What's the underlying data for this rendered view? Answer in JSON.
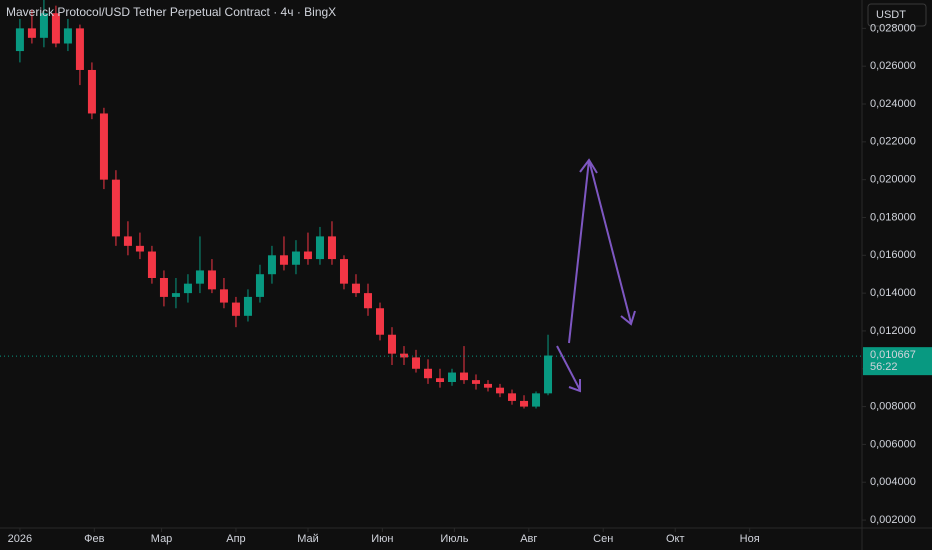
{
  "chart_data": {
    "type": "candlestick",
    "title": "Maverick Protocol/USD Tether Perpetual Contract · 4ч · BingX",
    "currency": "USDT",
    "up_color": "#089981",
    "down_color": "#f23645",
    "x": [
      0,
      5,
      10,
      15,
      20,
      25,
      30,
      35,
      40,
      45,
      50,
      55,
      60,
      65,
      70,
      75,
      80,
      85,
      90,
      95,
      100,
      105,
      110,
      115,
      120,
      125,
      130,
      135,
      140,
      145,
      150,
      155,
      160,
      165,
      170,
      175,
      180,
      185,
      190,
      195,
      200,
      205,
      210,
      215,
      220
    ],
    "open": [
      0.0268,
      0.028,
      0.0275,
      0.0288,
      0.0272,
      0.028,
      0.0258,
      0.0235,
      0.02,
      0.017,
      0.0165,
      0.0162,
      0.0148,
      0.0138,
      0.014,
      0.0145,
      0.0152,
      0.0142,
      0.0135,
      0.0128,
      0.0138,
      0.015,
      0.016,
      0.0155,
      0.0162,
      0.0158,
      0.017,
      0.0158,
      0.0145,
      0.014,
      0.0132,
      0.0118,
      0.0108,
      0.0106,
      0.01,
      0.0095,
      0.0093,
      0.0098,
      0.0094,
      0.0092,
      0.009,
      0.0087,
      0.0083,
      0.008,
      0.0087
    ],
    "high": [
      0.0285,
      0.029,
      0.0295,
      0.0292,
      0.0285,
      0.0282,
      0.0262,
      0.0238,
      0.0205,
      0.0178,
      0.0172,
      0.0165,
      0.0152,
      0.0148,
      0.015,
      0.017,
      0.0158,
      0.0148,
      0.0138,
      0.0142,
      0.0155,
      0.0165,
      0.017,
      0.0168,
      0.0172,
      0.0175,
      0.0178,
      0.016,
      0.015,
      0.0145,
      0.0135,
      0.0122,
      0.0112,
      0.011,
      0.0105,
      0.01,
      0.01,
      0.0112,
      0.0097,
      0.0094,
      0.0092,
      0.0089,
      0.0086,
      0.0088,
      0.0118
    ],
    "low": [
      0.0262,
      0.0272,
      0.027,
      0.027,
      0.0268,
      0.025,
      0.0232,
      0.0195,
      0.0165,
      0.016,
      0.0158,
      0.0145,
      0.0133,
      0.0132,
      0.0135,
      0.014,
      0.014,
      0.0132,
      0.0122,
      0.0125,
      0.0135,
      0.0145,
      0.0152,
      0.015,
      0.0155,
      0.0155,
      0.0155,
      0.0142,
      0.0138,
      0.0128,
      0.0115,
      0.0102,
      0.0102,
      0.0098,
      0.0092,
      0.009,
      0.0091,
      0.0092,
      0.0089,
      0.0088,
      0.0085,
      0.0081,
      0.0079,
      0.0079,
      0.0086
    ],
    "close": [
      0.028,
      0.0275,
      0.0288,
      0.0272,
      0.028,
      0.0258,
      0.0235,
      0.02,
      0.017,
      0.0165,
      0.0162,
      0.0148,
      0.0138,
      0.014,
      0.0145,
      0.0152,
      0.0142,
      0.0135,
      0.0128,
      0.0138,
      0.015,
      0.016,
      0.0155,
      0.0162,
      0.0158,
      0.017,
      0.0158,
      0.0145,
      0.014,
      0.0132,
      0.0118,
      0.0108,
      0.0106,
      0.01,
      0.0095,
      0.0093,
      0.0098,
      0.0094,
      0.0092,
      0.009,
      0.0087,
      0.0083,
      0.008,
      0.0087,
      0.0107
    ],
    "xlim": [
      -8.3,
      350.8
    ],
    "xticks": [
      {
        "value": 0,
        "label": "2026"
      },
      {
        "value": 31,
        "label": "Фев"
      },
      {
        "value": 59,
        "label": "Мар"
      },
      {
        "value": 90,
        "label": "Апр"
      },
      {
        "value": 120,
        "label": "Май"
      },
      {
        "value": 151,
        "label": "Июн"
      },
      {
        "value": 181,
        "label": "Июль"
      },
      {
        "value": 212,
        "label": "Авг"
      },
      {
        "value": 243,
        "label": "Сен"
      },
      {
        "value": 273,
        "label": "Окт"
      },
      {
        "value": 304,
        "label": "Ноя"
      }
    ],
    "ylim": [
      0.00158,
      0.0295
    ],
    "yticks": [
      {
        "value": 0.002,
        "label": "0,002000"
      },
      {
        "value": 0.004,
        "label": "0,004000"
      },
      {
        "value": 0.006,
        "label": "0,006000"
      },
      {
        "value": 0.008,
        "label": "0,008000"
      },
      {
        "value": 0.01,
        "label": "0,010000"
      },
      {
        "value": 0.012,
        "label": "0,012000"
      },
      {
        "value": 0.014,
        "label": "0,014000"
      },
      {
        "value": 0.016,
        "label": "0,016000"
      },
      {
        "value": 0.018,
        "label": "0,018000"
      },
      {
        "value": 0.02,
        "label": "0,020000"
      },
      {
        "value": 0.022,
        "label": "0,022000"
      },
      {
        "value": 0.024,
        "label": "0,024000"
      },
      {
        "value": 0.026,
        "label": "0,026000"
      },
      {
        "value": 0.028,
        "label": "0,028000"
      }
    ],
    "last_price": {
      "value": 0.010667,
      "label": "0,010667"
    },
    "countdown": "56:22"
  }
}
